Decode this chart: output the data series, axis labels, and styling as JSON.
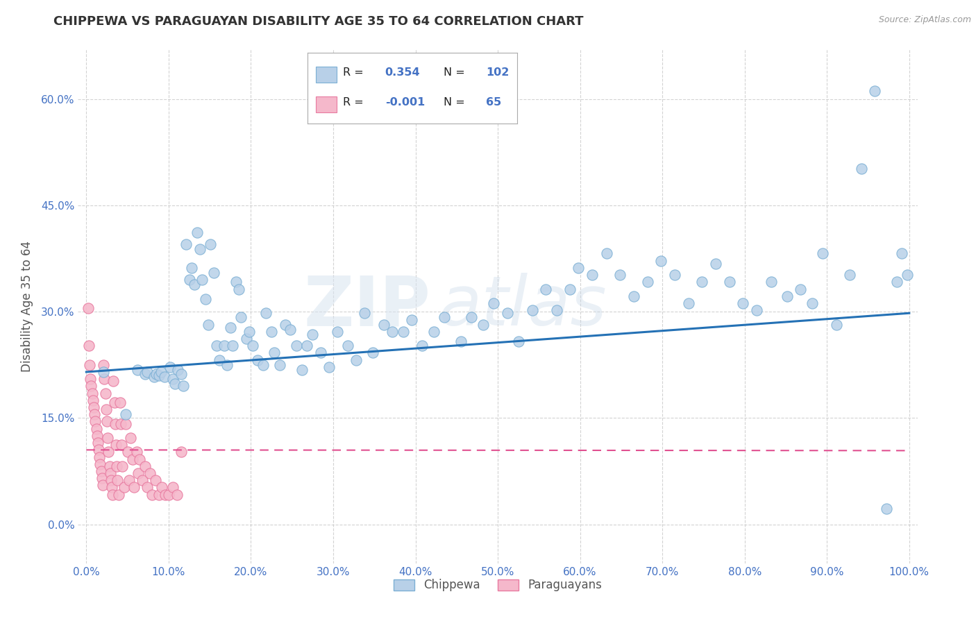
{
  "title": "CHIPPEWA VS PARAGUAYAN DISABILITY AGE 35 TO 64 CORRELATION CHART",
  "source_text": "Source: ZipAtlas.com",
  "ylabel": "Disability Age 35 to 64",
  "legend_label_blue": "Chippewa",
  "legend_label_pink": "Paraguayans",
  "r_blue": 0.354,
  "n_blue": 102,
  "r_pink": -0.001,
  "n_pink": 65,
  "blue_marker_face": "#b8d0e8",
  "blue_marker_edge": "#7bafd4",
  "pink_marker_face": "#f5b8cb",
  "pink_marker_edge": "#e87aa0",
  "line_blue": "#2471b5",
  "line_pink": "#e05090",
  "background_color": "#ffffff",
  "grid_color": "#c8c8c8",
  "xlim": [
    -0.01,
    1.01
  ],
  "ylim": [
    -0.055,
    0.67
  ],
  "xticks": [
    0.0,
    0.1,
    0.2,
    0.3,
    0.4,
    0.5,
    0.6,
    0.7,
    0.8,
    0.9,
    1.0
  ],
  "yticks": [
    0.0,
    0.15,
    0.3,
    0.45,
    0.6
  ],
  "xtick_labels": [
    "0.0%",
    "10.0%",
    "20.0%",
    "30.0%",
    "40.0%",
    "50.0%",
    "60.0%",
    "70.0%",
    "80.0%",
    "90.0%",
    "100.0%"
  ],
  "ytick_labels": [
    "0.0%",
    "15.0%",
    "30.0%",
    "45.0%",
    "60.0%"
  ],
  "blue_line_x0": 0.0,
  "blue_line_y0": 0.215,
  "blue_line_x1": 1.0,
  "blue_line_y1": 0.298,
  "pink_line_x0": 0.0,
  "pink_line_y0": 0.105,
  "pink_line_x1": 1.0,
  "pink_line_y1": 0.104,
  "watermark_text": "ZIP",
  "watermark_text2": "atlas",
  "title_color": "#333333",
  "tick_color": "#4472c4",
  "tick_fontsize": 11,
  "title_fontsize": 13,
  "legend_r_color": "#4472c4",
  "legend_n_color": "#4472c4",
  "figsize": [
    14.06,
    8.92
  ],
  "dpi": 100,
  "blue_x": [
    0.021,
    0.048,
    0.062,
    0.071,
    0.074,
    0.082,
    0.085,
    0.088,
    0.091,
    0.095,
    0.102,
    0.105,
    0.108,
    0.111,
    0.115,
    0.118,
    0.121,
    0.125,
    0.128,
    0.131,
    0.135,
    0.138,
    0.141,
    0.145,
    0.148,
    0.151,
    0.155,
    0.158,
    0.162,
    0.168,
    0.171,
    0.175,
    0.178,
    0.182,
    0.185,
    0.188,
    0.195,
    0.198,
    0.202,
    0.208,
    0.215,
    0.218,
    0.225,
    0.228,
    0.235,
    0.242,
    0.248,
    0.255,
    0.262,
    0.268,
    0.275,
    0.285,
    0.295,
    0.305,
    0.318,
    0.328,
    0.338,
    0.348,
    0.362,
    0.372,
    0.385,
    0.395,
    0.408,
    0.422,
    0.435,
    0.455,
    0.468,
    0.482,
    0.495,
    0.512,
    0.525,
    0.542,
    0.558,
    0.572,
    0.588,
    0.598,
    0.615,
    0.632,
    0.648,
    0.665,
    0.682,
    0.698,
    0.715,
    0.732,
    0.748,
    0.765,
    0.782,
    0.798,
    0.815,
    0.832,
    0.852,
    0.868,
    0.882,
    0.895,
    0.912,
    0.928,
    0.942,
    0.958,
    0.972,
    0.985,
    0.991,
    0.998
  ],
  "blue_y": [
    0.215,
    0.155,
    0.218,
    0.212,
    0.215,
    0.208,
    0.212,
    0.21,
    0.215,
    0.208,
    0.222,
    0.205,
    0.198,
    0.218,
    0.212,
    0.195,
    0.395,
    0.345,
    0.362,
    0.338,
    0.412,
    0.388,
    0.345,
    0.318,
    0.282,
    0.395,
    0.355,
    0.252,
    0.232,
    0.252,
    0.225,
    0.278,
    0.252,
    0.342,
    0.332,
    0.292,
    0.262,
    0.272,
    0.252,
    0.232,
    0.225,
    0.298,
    0.272,
    0.242,
    0.225,
    0.282,
    0.275,
    0.252,
    0.218,
    0.252,
    0.268,
    0.242,
    0.222,
    0.272,
    0.252,
    0.232,
    0.298,
    0.242,
    0.282,
    0.272,
    0.272,
    0.288,
    0.252,
    0.272,
    0.292,
    0.258,
    0.292,
    0.282,
    0.312,
    0.298,
    0.258,
    0.302,
    0.332,
    0.302,
    0.332,
    0.362,
    0.352,
    0.382,
    0.352,
    0.322,
    0.342,
    0.372,
    0.352,
    0.312,
    0.342,
    0.368,
    0.342,
    0.312,
    0.302,
    0.342,
    0.322,
    0.332,
    0.312,
    0.382,
    0.282,
    0.352,
    0.502,
    0.612,
    0.022,
    0.342,
    0.382,
    0.352
  ],
  "pink_x": [
    0.002,
    0.003,
    0.004,
    0.005,
    0.006,
    0.007,
    0.008,
    0.009,
    0.01,
    0.011,
    0.012,
    0.013,
    0.014,
    0.015,
    0.016,
    0.017,
    0.018,
    0.019,
    0.02,
    0.021,
    0.022,
    0.023,
    0.024,
    0.025,
    0.026,
    0.027,
    0.028,
    0.029,
    0.03,
    0.031,
    0.032,
    0.033,
    0.034,
    0.035,
    0.036,
    0.037,
    0.038,
    0.039,
    0.041,
    0.042,
    0.043,
    0.044,
    0.046,
    0.048,
    0.05,
    0.052,
    0.054,
    0.056,
    0.058,
    0.061,
    0.063,
    0.065,
    0.068,
    0.071,
    0.074,
    0.077,
    0.08,
    0.084,
    0.088,
    0.092,
    0.096,
    0.1,
    0.105,
    0.11,
    0.115
  ],
  "pink_y": [
    0.305,
    0.252,
    0.225,
    0.205,
    0.195,
    0.185,
    0.175,
    0.165,
    0.155,
    0.145,
    0.135,
    0.125,
    0.115,
    0.105,
    0.095,
    0.085,
    0.075,
    0.065,
    0.055,
    0.225,
    0.205,
    0.185,
    0.162,
    0.145,
    0.122,
    0.102,
    0.082,
    0.072,
    0.062,
    0.052,
    0.042,
    0.202,
    0.172,
    0.142,
    0.112,
    0.082,
    0.062,
    0.042,
    0.172,
    0.142,
    0.112,
    0.082,
    0.052,
    0.142,
    0.102,
    0.062,
    0.122,
    0.092,
    0.052,
    0.102,
    0.072,
    0.092,
    0.062,
    0.082,
    0.052,
    0.072,
    0.042,
    0.062,
    0.042,
    0.052,
    0.042,
    0.042,
    0.052,
    0.042,
    0.102
  ]
}
